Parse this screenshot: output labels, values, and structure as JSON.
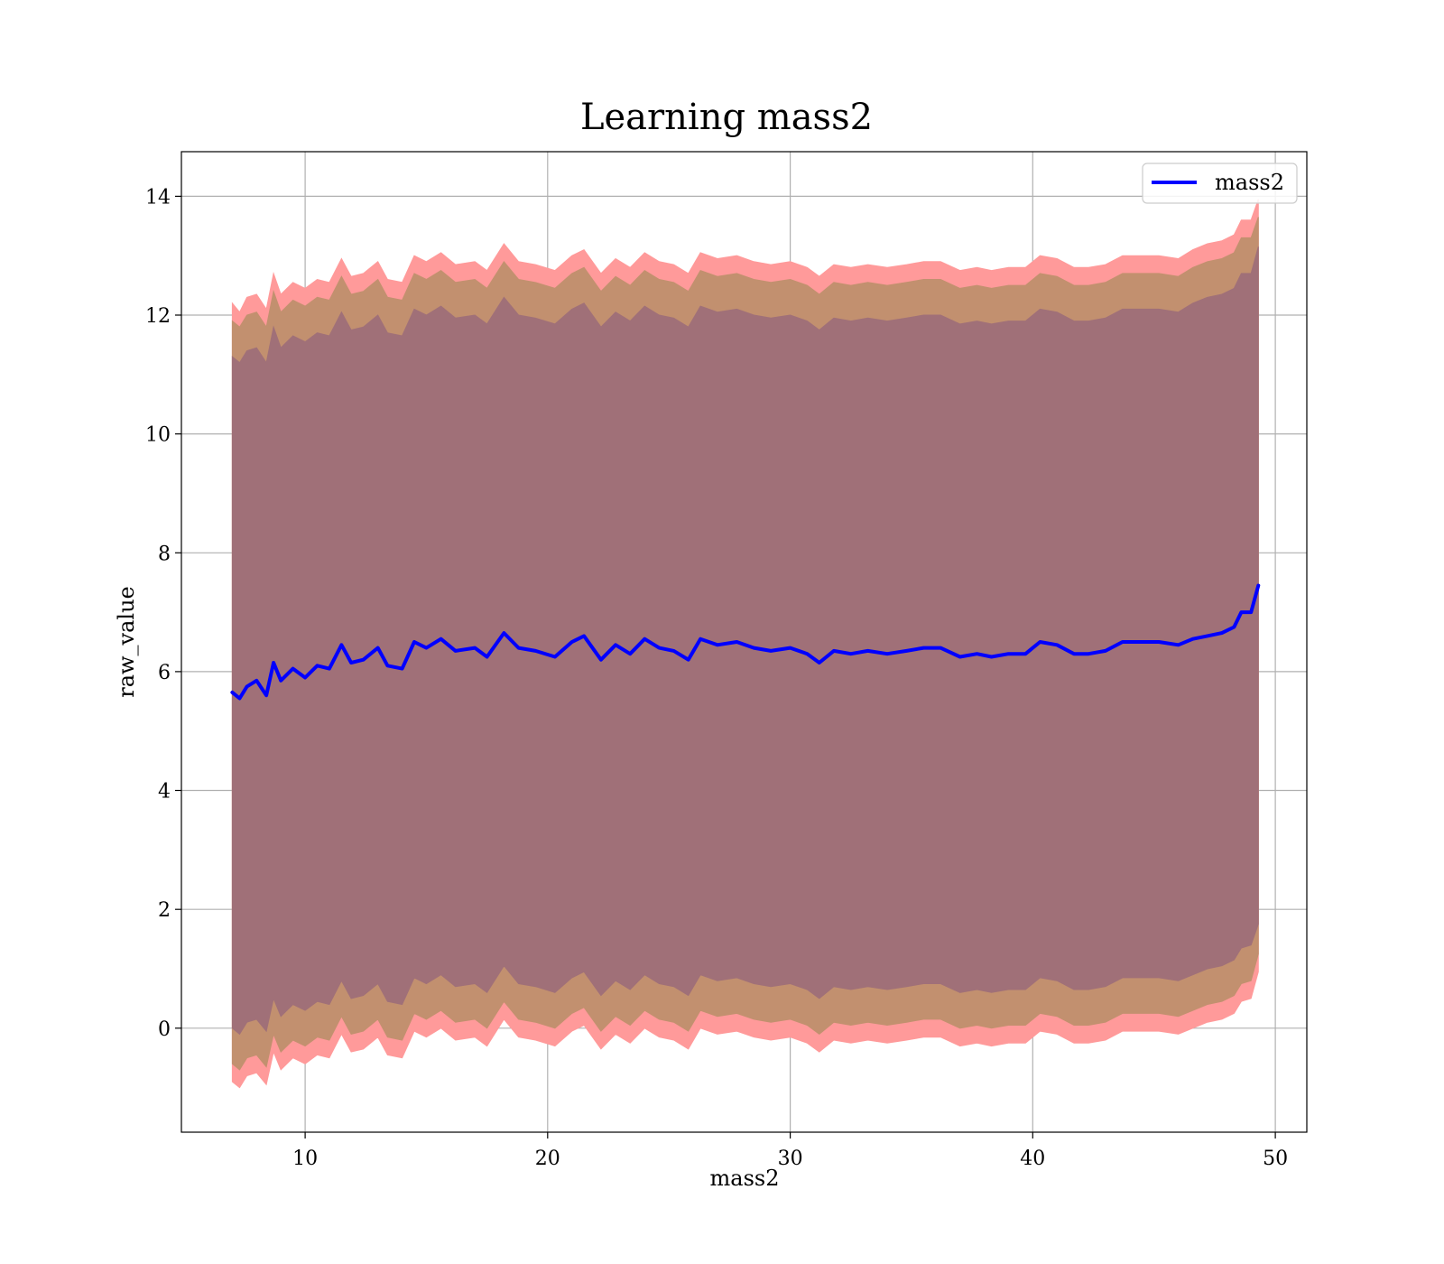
{
  "colors": {
    "line": "#0000ff",
    "outer_band": "#ff9a9a",
    "middle_band": "#c2906f",
    "inner_band": "#a07078",
    "grid": "#b0b0b0",
    "frame": "#000000"
  },
  "chart_data": {
    "type": "line",
    "title": "Learning mass2",
    "xlabel": "mass2",
    "ylabel": "raw_value",
    "xlim": [
      4.9,
      51.3
    ],
    "ylim": [
      -1.75,
      14.75
    ],
    "xticks": [
      10,
      20,
      30,
      40,
      50
    ],
    "yticks": [
      0,
      2,
      4,
      6,
      8,
      10,
      12,
      14
    ],
    "grid": true,
    "legend_placement": "top-right",
    "x": [
      7.0,
      7.3,
      7.6,
      8.0,
      8.4,
      8.7,
      9.0,
      9.5,
      10.0,
      10.5,
      11.0,
      11.5,
      11.9,
      12.4,
      13.0,
      13.4,
      14.0,
      14.5,
      15.0,
      15.6,
      16.2,
      17.0,
      17.5,
      18.2,
      18.8,
      19.5,
      20.3,
      21.0,
      21.5,
      22.2,
      22.8,
      23.4,
      24.0,
      24.6,
      25.2,
      25.8,
      26.3,
      27.0,
      27.8,
      28.5,
      29.2,
      30.0,
      30.7,
      31.2,
      31.8,
      32.5,
      33.2,
      34.0,
      34.8,
      35.5,
      36.2,
      37.0,
      37.7,
      38.3,
      39.0,
      39.7,
      40.3,
      41.0,
      41.7,
      42.3,
      43.0,
      43.7,
      44.5,
      45.2,
      46.0,
      46.6,
      47.2,
      47.8,
      48.3,
      48.6,
      49.0,
      49.3
    ],
    "series": [
      {
        "name": "mass2",
        "values": [
          5.65,
          5.55,
          5.75,
          5.85,
          5.6,
          6.15,
          5.85,
          6.05,
          5.9,
          6.1,
          6.05,
          6.45,
          6.15,
          6.2,
          6.4,
          6.1,
          6.05,
          6.5,
          6.4,
          6.55,
          6.35,
          6.4,
          6.25,
          6.65,
          6.4,
          6.35,
          6.25,
          6.5,
          6.6,
          6.2,
          6.45,
          6.3,
          6.55,
          6.4,
          6.35,
          6.2,
          6.55,
          6.45,
          6.5,
          6.4,
          6.35,
          6.4,
          6.3,
          6.15,
          6.35,
          6.3,
          6.35,
          6.3,
          6.35,
          6.4,
          6.4,
          6.25,
          6.3,
          6.25,
          6.3,
          6.3,
          6.5,
          6.45,
          6.3,
          6.3,
          6.35,
          6.5,
          6.5,
          6.5,
          6.45,
          6.55,
          6.6,
          6.65,
          6.75,
          7.0,
          7.0,
          7.45
        ]
      }
    ],
    "bands": [
      {
        "level": "outer",
        "upper": [
          12.2,
          12.05,
          12.3,
          12.35,
          12.1,
          12.7,
          12.35,
          12.55,
          12.45,
          12.6,
          12.55,
          12.95,
          12.65,
          12.7,
          12.9,
          12.6,
          12.55,
          13.0,
          12.9,
          13.05,
          12.85,
          12.9,
          12.75,
          13.2,
          12.9,
          12.85,
          12.75,
          13.0,
          13.1,
          12.7,
          12.95,
          12.8,
          13.05,
          12.9,
          12.85,
          12.7,
          13.05,
          12.95,
          13.0,
          12.9,
          12.85,
          12.9,
          12.8,
          12.65,
          12.85,
          12.8,
          12.85,
          12.8,
          12.85,
          12.9,
          12.9,
          12.75,
          12.8,
          12.75,
          12.8,
          12.8,
          13.0,
          12.95,
          12.8,
          12.8,
          12.85,
          13.0,
          13.0,
          13.0,
          12.95,
          13.1,
          13.2,
          13.25,
          13.35,
          13.6,
          13.6,
          13.95
        ],
        "lower": [
          -0.9,
          -1.0,
          -0.8,
          -0.75,
          -0.95,
          -0.4,
          -0.7,
          -0.5,
          -0.6,
          -0.45,
          -0.5,
          -0.1,
          -0.4,
          -0.35,
          -0.15,
          -0.45,
          -0.5,
          -0.05,
          -0.15,
          0.0,
          -0.2,
          -0.15,
          -0.3,
          0.15,
          -0.15,
          -0.2,
          -0.3,
          -0.05,
          0.05,
          -0.35,
          -0.1,
          -0.25,
          0.0,
          -0.15,
          -0.2,
          -0.35,
          0.0,
          -0.1,
          -0.05,
          -0.15,
          -0.2,
          -0.15,
          -0.25,
          -0.4,
          -0.2,
          -0.25,
          -0.2,
          -0.25,
          -0.2,
          -0.15,
          -0.15,
          -0.3,
          -0.25,
          -0.3,
          -0.25,
          -0.25,
          -0.05,
          -0.1,
          -0.25,
          -0.25,
          -0.2,
          -0.05,
          -0.05,
          -0.05,
          -0.1,
          0.0,
          0.1,
          0.15,
          0.25,
          0.45,
          0.5,
          0.95
        ]
      },
      {
        "level": "middle",
        "upper": [
          11.9,
          11.8,
          12.0,
          12.05,
          11.8,
          12.4,
          12.05,
          12.25,
          12.15,
          12.3,
          12.25,
          12.65,
          12.35,
          12.4,
          12.6,
          12.3,
          12.25,
          12.7,
          12.6,
          12.75,
          12.55,
          12.6,
          12.45,
          12.9,
          12.6,
          12.55,
          12.45,
          12.7,
          12.8,
          12.4,
          12.65,
          12.5,
          12.75,
          12.6,
          12.55,
          12.4,
          12.75,
          12.65,
          12.7,
          12.6,
          12.55,
          12.6,
          12.5,
          12.35,
          12.55,
          12.5,
          12.55,
          12.5,
          12.55,
          12.6,
          12.6,
          12.45,
          12.5,
          12.45,
          12.5,
          12.5,
          12.7,
          12.65,
          12.5,
          12.5,
          12.55,
          12.7,
          12.7,
          12.7,
          12.65,
          12.8,
          12.9,
          12.95,
          13.05,
          13.3,
          13.3,
          13.65
        ],
        "lower": [
          -0.6,
          -0.7,
          -0.5,
          -0.45,
          -0.65,
          -0.1,
          -0.4,
          -0.2,
          -0.3,
          -0.15,
          -0.2,
          0.2,
          -0.1,
          -0.05,
          0.15,
          -0.15,
          -0.2,
          0.25,
          0.15,
          0.3,
          0.1,
          0.15,
          0.0,
          0.45,
          0.15,
          0.1,
          0.0,
          0.25,
          0.35,
          -0.05,
          0.2,
          0.05,
          0.3,
          0.15,
          0.1,
          -0.05,
          0.3,
          0.2,
          0.25,
          0.15,
          0.1,
          0.15,
          0.05,
          -0.1,
          0.1,
          0.05,
          0.1,
          0.05,
          0.1,
          0.15,
          0.15,
          0.0,
          0.05,
          0.0,
          0.05,
          0.05,
          0.25,
          0.2,
          0.05,
          0.05,
          0.1,
          0.25,
          0.25,
          0.25,
          0.2,
          0.3,
          0.4,
          0.45,
          0.55,
          0.75,
          0.8,
          1.25
        ]
      },
      {
        "level": "inner",
        "upper": [
          11.3,
          11.2,
          11.4,
          11.45,
          11.2,
          11.8,
          11.45,
          11.65,
          11.55,
          11.7,
          11.65,
          12.05,
          11.75,
          11.8,
          12.0,
          11.7,
          11.65,
          12.1,
          12.0,
          12.15,
          11.95,
          12.0,
          11.85,
          12.3,
          12.0,
          11.95,
          11.85,
          12.1,
          12.2,
          11.8,
          12.05,
          11.9,
          12.15,
          12.0,
          11.95,
          11.8,
          12.15,
          12.05,
          12.1,
          12.0,
          11.95,
          12.0,
          11.9,
          11.75,
          11.95,
          11.9,
          11.95,
          11.9,
          11.95,
          12.0,
          12.0,
          11.85,
          11.9,
          11.85,
          11.9,
          11.9,
          12.1,
          12.05,
          11.9,
          11.9,
          11.95,
          12.1,
          12.1,
          12.1,
          12.05,
          12.2,
          12.3,
          12.35,
          12.45,
          12.7,
          12.7,
          13.15
        ],
        "lower": [
          0.0,
          -0.1,
          0.1,
          0.15,
          -0.05,
          0.5,
          0.2,
          0.4,
          0.3,
          0.45,
          0.4,
          0.8,
          0.5,
          0.55,
          0.75,
          0.45,
          0.4,
          0.85,
          0.75,
          0.9,
          0.7,
          0.75,
          0.6,
          1.05,
          0.75,
          0.7,
          0.6,
          0.85,
          0.95,
          0.55,
          0.8,
          0.65,
          0.9,
          0.75,
          0.7,
          0.55,
          0.9,
          0.8,
          0.85,
          0.75,
          0.7,
          0.75,
          0.65,
          0.5,
          0.7,
          0.65,
          0.7,
          0.65,
          0.7,
          0.75,
          0.75,
          0.6,
          0.65,
          0.6,
          0.65,
          0.65,
          0.85,
          0.8,
          0.65,
          0.65,
          0.7,
          0.85,
          0.85,
          0.85,
          0.8,
          0.9,
          1.0,
          1.05,
          1.15,
          1.35,
          1.4,
          1.75
        ]
      }
    ]
  }
}
